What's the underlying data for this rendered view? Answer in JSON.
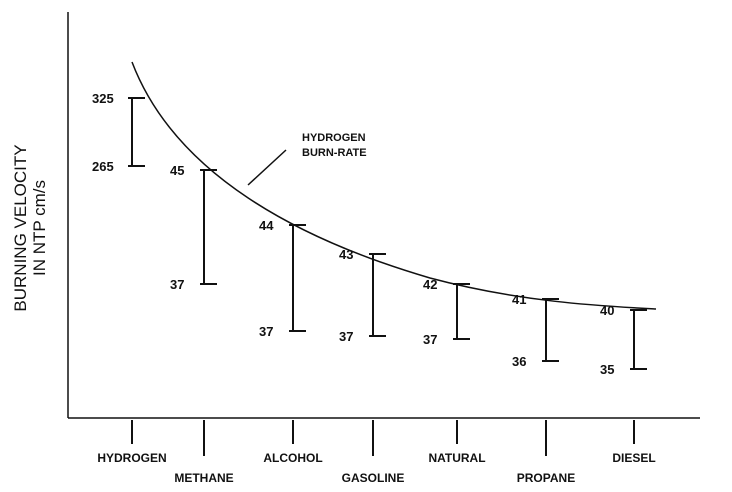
{
  "chart_data": {
    "type": "range",
    "ylabel_line1": "BURNING VELOCITY",
    "ylabel_line2": "IN NTP cm/s",
    "annotation_line1": "HYDROGEN",
    "annotation_line2": "BURN-RATE",
    "categories": [
      "HYDROGEN",
      "METHANE",
      "ALCOHOL",
      "GASOLINE",
      "NATURAL",
      "PROPANE",
      "DIESEL"
    ],
    "series": [
      {
        "high": [
          325,
          45,
          44,
          43,
          42,
          41,
          40
        ],
        "low": [
          265,
          37,
          37,
          37,
          37,
          36,
          35
        ]
      }
    ],
    "high_labels": [
      "325",
      "45",
      "44",
      "43",
      "42",
      "41",
      "40"
    ],
    "low_labels": [
      "265",
      "37",
      "37",
      "37",
      "37",
      "36",
      "35"
    ],
    "grid": false,
    "legend": "none"
  }
}
